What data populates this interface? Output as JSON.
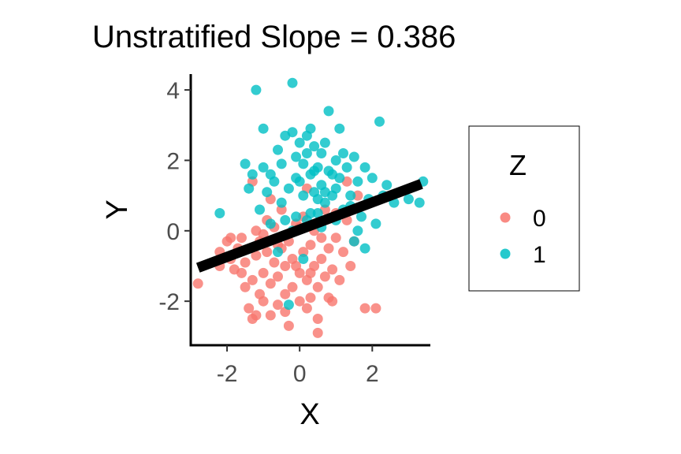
{
  "chart_data": {
    "type": "scatter",
    "title": "Unstratified Slope = 0.386",
    "xlabel": "X",
    "ylabel": "Y",
    "xlim": [
      -3.0,
      3.6
    ],
    "ylim": [
      -3.25,
      4.45
    ],
    "x_ticks": [
      -2,
      0,
      2
    ],
    "x_tick_labels": [
      "-2",
      "0",
      "2"
    ],
    "y_ticks": [
      -2,
      0,
      2,
      4
    ],
    "y_tick_labels": [
      "-2",
      "0",
      "2",
      "4"
    ],
    "grid": false,
    "legend": {
      "title": "Z",
      "position": "right",
      "entries": [
        "0",
        "1"
      ]
    },
    "colors": {
      "0": "#F8766D",
      "1": "#00BFC4",
      "fit_line": "#000000"
    },
    "fit_line": {
      "slope": 0.386,
      "x": [
        -2.8,
        3.35
      ],
      "y": [
        -1.05,
        1.33
      ]
    },
    "series": [
      {
        "name": "0",
        "points": [
          [
            -2.8,
            -1.5
          ],
          [
            -2.2,
            -0.6
          ],
          [
            -2.0,
            -0.3
          ],
          [
            -1.9,
            -0.8
          ],
          [
            -1.8,
            -1.1
          ],
          [
            -1.7,
            -0.5
          ],
          [
            -1.6,
            -0.2
          ],
          [
            -1.5,
            -1.6
          ],
          [
            -1.5,
            -0.9
          ],
          [
            -1.4,
            -2.2
          ],
          [
            -1.3,
            -2.5
          ],
          [
            -1.3,
            -1.4
          ],
          [
            -1.2,
            -0.7
          ],
          [
            -1.2,
            0.0
          ],
          [
            -1.1,
            -1.8
          ],
          [
            -1.1,
            -0.3
          ],
          [
            -1.0,
            -2.0
          ],
          [
            -1.0,
            -1.2
          ],
          [
            -0.9,
            -0.6
          ],
          [
            -0.9,
            0.3
          ],
          [
            -0.8,
            -2.4
          ],
          [
            -0.8,
            -1.5
          ],
          [
            -0.7,
            -0.9
          ],
          [
            -0.7,
            0.1
          ],
          [
            -0.6,
            -2.1
          ],
          [
            -0.6,
            -1.3
          ],
          [
            -0.5,
            -0.5
          ],
          [
            -0.5,
            0.6
          ],
          [
            -0.4,
            -1.8
          ],
          [
            -0.4,
            -1.0
          ],
          [
            -0.3,
            -2.7
          ],
          [
            -0.3,
            -0.3
          ],
          [
            -0.2,
            -1.6
          ],
          [
            -0.2,
            -0.8
          ],
          [
            -0.1,
            0.2
          ],
          [
            0.0,
            -2.0
          ],
          [
            0.0,
            -1.2
          ],
          [
            0.1,
            -0.6
          ],
          [
            0.1,
            0.4
          ],
          [
            0.2,
            -2.2
          ],
          [
            0.2,
            -1.4
          ],
          [
            0.3,
            -0.4
          ],
          [
            0.3,
            -1.9
          ],
          [
            0.4,
            -1.0
          ],
          [
            0.4,
            0.0
          ],
          [
            0.5,
            -2.5
          ],
          [
            0.5,
            -1.6
          ],
          [
            0.5,
            -2.9
          ],
          [
            0.6,
            -0.8
          ],
          [
            0.7,
            -1.3
          ],
          [
            0.7,
            0.6
          ],
          [
            0.8,
            -0.5
          ],
          [
            0.8,
            -1.9
          ],
          [
            0.9,
            -1.1
          ],
          [
            1.0,
            -0.2
          ],
          [
            1.1,
            -1.4
          ],
          [
            1.2,
            -0.6
          ],
          [
            1.3,
            0.3
          ],
          [
            1.4,
            -1.0
          ],
          [
            1.5,
            -0.3
          ],
          [
            1.6,
            1.0
          ],
          [
            1.8,
            -2.2
          ],
          [
            2.1,
            -2.2
          ],
          [
            -1.3,
            1.4
          ],
          [
            -0.8,
            0.9
          ],
          [
            0.2,
            1.2
          ],
          [
            1.3,
            1.4
          ],
          [
            -2.2,
            -1.0
          ],
          [
            -1.9,
            -0.2
          ],
          [
            -1.6,
            -1.2
          ],
          [
            -1.0,
            -0.1
          ],
          [
            -0.6,
            -0.4
          ],
          [
            0.0,
            0.1
          ],
          [
            0.6,
            -0.2
          ],
          [
            1.0,
            0.5
          ],
          [
            -0.1,
            -1.0
          ],
          [
            0.3,
            -1.2
          ],
          [
            -0.4,
            -2.3
          ],
          [
            0.9,
            -2.0
          ],
          [
            -1.2,
            -2.4
          ]
        ]
      },
      {
        "name": "1",
        "points": [
          [
            -2.2,
            0.5
          ],
          [
            -1.5,
            1.9
          ],
          [
            -1.4,
            1.2
          ],
          [
            -1.3,
            1.6
          ],
          [
            -1.2,
            4.0
          ],
          [
            -1.1,
            0.6
          ],
          [
            -1.0,
            2.9
          ],
          [
            -1.0,
            1.8
          ],
          [
            -0.9,
            1.1
          ],
          [
            -0.8,
            0.2
          ],
          [
            -0.7,
            1.4
          ],
          [
            -0.6,
            2.3
          ],
          [
            -0.5,
            1.9
          ],
          [
            -0.5,
            0.8
          ],
          [
            -0.4,
            2.7
          ],
          [
            -0.3,
            1.2
          ],
          [
            -0.2,
            4.2
          ],
          [
            -0.2,
            2.8
          ],
          [
            -0.1,
            1.5
          ],
          [
            -0.1,
            0.4
          ],
          [
            0.0,
            2.5
          ],
          [
            0.1,
            1.9
          ],
          [
            0.1,
            1.0
          ],
          [
            0.2,
            2.2
          ],
          [
            0.2,
            0.3
          ],
          [
            0.3,
            1.6
          ],
          [
            0.3,
            2.9
          ],
          [
            0.4,
            1.1
          ],
          [
            0.4,
            2.4
          ],
          [
            0.5,
            0.5
          ],
          [
            0.5,
            1.8
          ],
          [
            0.6,
            2.2
          ],
          [
            0.6,
            1.3
          ],
          [
            0.7,
            2.5
          ],
          [
            0.7,
            0.8
          ],
          [
            0.8,
            3.4
          ],
          [
            0.8,
            1.7
          ],
          [
            0.9,
            1.0
          ],
          [
            1.0,
            2.0
          ],
          [
            1.0,
            0.3
          ],
          [
            1.1,
            1.5
          ],
          [
            1.1,
            2.9
          ],
          [
            1.2,
            0.6
          ],
          [
            1.3,
            1.8
          ],
          [
            1.4,
            1.0
          ],
          [
            1.5,
            2.1
          ],
          [
            1.5,
            -0.3
          ],
          [
            1.6,
            1.4
          ],
          [
            1.7,
            0.4
          ],
          [
            1.8,
            1.8
          ],
          [
            1.9,
            0.9
          ],
          [
            2.0,
            1.5
          ],
          [
            2.1,
            0.2
          ],
          [
            2.2,
            3.1
          ],
          [
            2.3,
            1.0
          ],
          [
            2.4,
            1.3
          ],
          [
            2.6,
            0.8
          ],
          [
            3.0,
            0.9
          ],
          [
            3.4,
            1.4
          ],
          [
            3.3,
            0.8
          ],
          [
            -0.3,
            -2.1
          ],
          [
            0.1,
            -0.8
          ],
          [
            -0.6,
            -0.6
          ],
          [
            0.3,
            0.5
          ],
          [
            -0.2,
            0.0
          ],
          [
            0.9,
            1.6
          ],
          [
            1.2,
            2.2
          ],
          [
            0.0,
            1.4
          ],
          [
            -0.4,
            0.3
          ],
          [
            0.6,
            0.1
          ],
          [
            1.4,
            0.7
          ],
          [
            0.2,
            2.7
          ],
          [
            -0.8,
            1.6
          ],
          [
            1.8,
            -0.5
          ],
          [
            0.4,
            1.7
          ],
          [
            1.6,
            0.0
          ],
          [
            -0.1,
            2.1
          ],
          [
            0.7,
            1.1
          ],
          [
            1.0,
            1.2
          ],
          [
            0.5,
            0.9
          ]
        ]
      }
    ]
  }
}
